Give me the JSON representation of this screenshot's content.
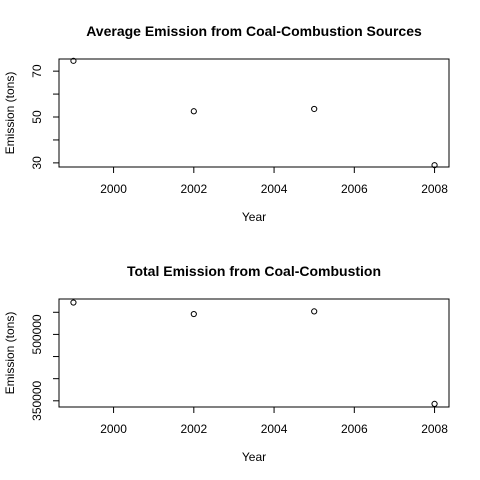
{
  "chart_data": [
    {
      "type": "scatter",
      "title": "Average Emission from Coal-Combustion Sources",
      "xlabel": "Year",
      "ylabel": "Emission (tons)",
      "x": [
        1999,
        2002,
        2005,
        2008
      ],
      "y": [
        74.5,
        52.5,
        53.5,
        29.0
      ],
      "xlim": [
        1998.64,
        2008.36
      ],
      "ylim": [
        28.2,
        75.3
      ],
      "xticks": [
        2000,
        2002,
        2004,
        2006,
        2008
      ],
      "yticks_labeled": [
        30,
        50,
        70
      ],
      "yticks": [
        30,
        40,
        50,
        60,
        70
      ],
      "grid": false,
      "legend": "none"
    },
    {
      "type": "scatter",
      "title": "Total Emission from Coal-Combustion",
      "xlabel": "Year",
      "ylabel": "Emission (tons)",
      "x": [
        1999,
        2002,
        2005,
        2008
      ],
      "y": [
        572000,
        546000,
        552000,
        343000
      ],
      "xlim": [
        1998.64,
        2008.36
      ],
      "ylim": [
        336000,
        580000
      ],
      "xticks": [
        2000,
        2002,
        2004,
        2006,
        2008
      ],
      "yticks_labeled": [
        350000,
        500000
      ],
      "yticks": [
        350000,
        400000,
        450000,
        500000,
        550000
      ],
      "grid": false,
      "legend": "none"
    }
  ]
}
